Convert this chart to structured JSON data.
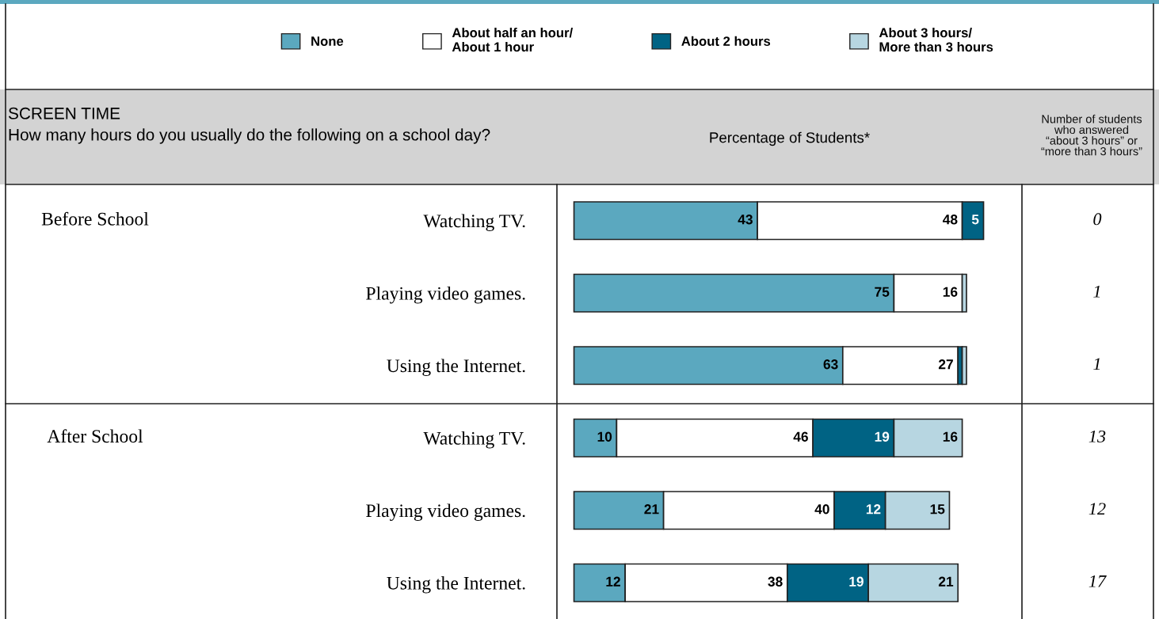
{
  "chart_data": {
    "type": "bar",
    "orientation": "horizontal",
    "stacked": true,
    "title": "SCREEN TIME",
    "subtitle": "How many hours do you usually do the following on a school day?",
    "xlabel": "Percentage of Students*",
    "categories": [
      "Watching TV.",
      "Playing video games.",
      "Using the Internet.",
      "Watching TV.",
      "Playing video games.",
      "Using the Internet."
    ],
    "series": [
      {
        "name": "None",
        "color": "#5ba8bf",
        "values": [
          43,
          75,
          63,
          10,
          21,
          12
        ],
        "value_labels": [
          "43",
          "75",
          "63",
          "10",
          "21",
          "12"
        ]
      },
      {
        "name": "About half an hour/\nAbout 1 hour",
        "color": "#ffffff",
        "values": [
          48,
          16,
          27,
          46,
          40,
          38
        ],
        "value_labels": [
          "48",
          "16",
          "27",
          "46",
          "40",
          "38"
        ]
      },
      {
        "name": "About 2 hours",
        "color": "#006384",
        "values": [
          5,
          0,
          1,
          19,
          12,
          19
        ],
        "value_labels": [
          "5",
          null,
          null,
          "19",
          "12",
          "19"
        ]
      },
      {
        "name": "About 3 hours/\nMore than 3 hours",
        "color": "#b7d6e1",
        "values": [
          0,
          1,
          1,
          16,
          15,
          21
        ],
        "value_labels": [
          null,
          null,
          null,
          "16",
          "15",
          "21"
        ]
      }
    ],
    "xlim": [
      -4,
      105
    ],
    "legend": "top",
    "annotations": [
      "Before School",
      "After School",
      "Number of students\nwho answered\n“about 3 hours” or\n“more than 3 hours”",
      "0",
      "1",
      "1",
      "13",
      "12",
      "17"
    ]
  }
}
